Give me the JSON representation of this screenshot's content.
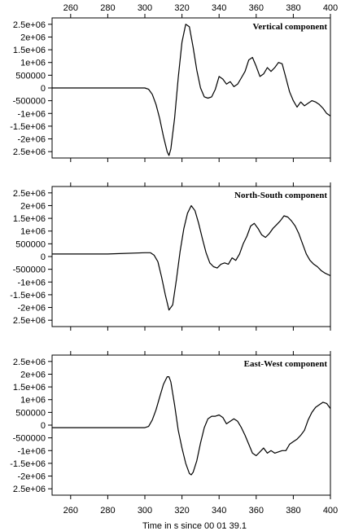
{
  "chart_data": {
    "type": "line",
    "xlabel": "Time in s since 00 01 39.1",
    "xlim": [
      250,
      400
    ],
    "x_ticks": [
      "260",
      "280",
      "300",
      "320",
      "340",
      "360",
      "380",
      "400"
    ],
    "y_ticks": [
      "2.5e+06",
      "2e+06",
      "1.5e+06",
      "1e+06",
      "500000",
      "0",
      "-500000",
      "-1e+06",
      "-1.5e+06",
      "-2e+06",
      "2.5e+06"
    ],
    "ylim": [
      -2750000.0,
      2750000.0
    ],
    "panels": [
      {
        "title": "Vertical component",
        "x": [
          250,
          300,
          302,
          304,
          306,
          308,
          310,
          312,
          313,
          314,
          316,
          318,
          320,
          322,
          324,
          326,
          328,
          330,
          332,
          334,
          336,
          338,
          340,
          342,
          344,
          346,
          348,
          350,
          352,
          354,
          356,
          358,
          360,
          362,
          364,
          366,
          368,
          370,
          372,
          374,
          376,
          378,
          380,
          382,
          384,
          386,
          388,
          390,
          392,
          394,
          396,
          398,
          400
        ],
        "y": [
          0,
          0,
          -50000,
          -250000,
          -650000,
          -1200000,
          -1900000,
          -2500000,
          -2650000,
          -2400000,
          -1200000,
          400000,
          1800000,
          2500000,
          2400000,
          1600000,
          700000,
          0,
          -350000,
          -400000,
          -350000,
          -50000,
          450000,
          350000,
          150000,
          250000,
          50000,
          150000,
          400000,
          650000,
          1100000,
          1200000,
          850000,
          450000,
          550000,
          800000,
          650000,
          800000,
          1000000,
          950000,
          400000,
          -150000,
          -500000,
          -750000,
          -550000,
          -700000,
          -600000,
          -500000,
          -550000,
          -650000,
          -800000,
          -1000000,
          -1100000
        ]
      },
      {
        "title": "North-South component",
        "x": [
          250,
          280,
          300,
          303,
          305,
          307,
          309,
          311,
          313,
          315,
          317,
          319,
          321,
          323,
          325,
          327,
          329,
          331,
          333,
          335,
          337,
          339,
          341,
          343,
          345,
          347,
          349,
          351,
          353,
          355,
          357,
          359,
          361,
          363,
          365,
          367,
          369,
          371,
          373,
          375,
          377,
          379,
          381,
          383,
          385,
          387,
          389,
          391,
          393,
          395,
          397,
          400
        ],
        "y": [
          100000,
          100000,
          150000,
          150000,
          50000,
          -200000,
          -800000,
          -1500000,
          -2100000,
          -1900000,
          -900000,
          200000,
          1100000,
          1700000,
          2000000,
          1800000,
          1300000,
          700000,
          150000,
          -250000,
          -400000,
          -450000,
          -300000,
          -250000,
          -300000,
          -50000,
          -150000,
          100000,
          500000,
          800000,
          1200000,
          1300000,
          1100000,
          850000,
          750000,
          900000,
          1100000,
          1250000,
          1400000,
          1600000,
          1550000,
          1400000,
          1200000,
          900000,
          500000,
          100000,
          -150000,
          -300000,
          -400000,
          -550000,
          -650000,
          -750000
        ]
      },
      {
        "title": "East-West component",
        "x": [
          250,
          280,
          300,
          302,
          304,
          306,
          308,
          310,
          312,
          313,
          314,
          316,
          318,
          320,
          322,
          324,
          325,
          326,
          328,
          330,
          332,
          334,
          336,
          338,
          340,
          342,
          344,
          346,
          348,
          350,
          352,
          354,
          356,
          358,
          360,
          362,
          364,
          366,
          368,
          370,
          372,
          374,
          376,
          378,
          380,
          382,
          384,
          386,
          388,
          390,
          392,
          394,
          396,
          398,
          400
        ],
        "y": [
          -100000,
          -100000,
          -100000,
          -50000,
          200000,
          600000,
          1100000,
          1600000,
          1900000,
          1900000,
          1700000,
          800000,
          -200000,
          -900000,
          -1500000,
          -1900000,
          -1950000,
          -1850000,
          -1400000,
          -700000,
          -100000,
          250000,
          350000,
          350000,
          400000,
          300000,
          50000,
          150000,
          250000,
          150000,
          -100000,
          -400000,
          -750000,
          -1100000,
          -1200000,
          -1050000,
          -900000,
          -1100000,
          -1000000,
          -1100000,
          -1050000,
          -1000000,
          -1000000,
          -750000,
          -650000,
          -550000,
          -400000,
          -200000,
          200000,
          500000,
          700000,
          800000,
          900000,
          850000,
          650000
        ]
      }
    ]
  }
}
